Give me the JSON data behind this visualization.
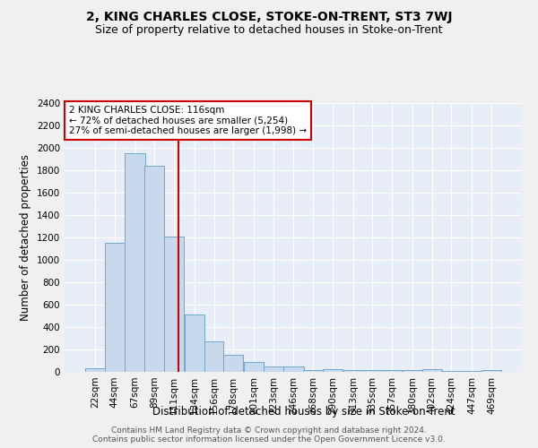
{
  "title": "2, KING CHARLES CLOSE, STOKE-ON-TRENT, ST3 7WJ",
  "subtitle": "Size of property relative to detached houses in Stoke-on-Trent",
  "xlabel": "Distribution of detached houses by size in Stoke-on-Trent",
  "ylabel": "Number of detached properties",
  "footer_line1": "Contains HM Land Registry data © Crown copyright and database right 2024.",
  "footer_line2": "Contains public sector information licensed under the Open Government Licence v3.0.",
  "bar_labels": [
    "22sqm",
    "44sqm",
    "67sqm",
    "89sqm",
    "111sqm",
    "134sqm",
    "156sqm",
    "178sqm",
    "201sqm",
    "223sqm",
    "246sqm",
    "268sqm",
    "290sqm",
    "313sqm",
    "335sqm",
    "357sqm",
    "380sqm",
    "402sqm",
    "424sqm",
    "447sqm",
    "469sqm"
  ],
  "bar_values": [
    30,
    1150,
    1950,
    1840,
    1210,
    510,
    270,
    155,
    90,
    45,
    45,
    20,
    25,
    20,
    20,
    20,
    20,
    25,
    5,
    5,
    20
  ],
  "bar_color": "#c9d9ed",
  "bar_edgecolor": "#6fa8d0",
  "property_size": 116,
  "property_label": "2 KING CHARLES CLOSE: 116sqm",
  "annotation_line1": "← 72% of detached houses are smaller (5,254)",
  "annotation_line2": "27% of semi-detached houses are larger (1,998) →",
  "vline_color": "#cc0000",
  "vline_x": 116,
  "annotation_box_color": "#ffffff",
  "annotation_box_edgecolor": "#cc0000",
  "ylim": [
    0,
    2400
  ],
  "yticks": [
    0,
    200,
    400,
    600,
    800,
    1000,
    1200,
    1400,
    1600,
    1800,
    2000,
    2200,
    2400
  ],
  "bg_color": "#e8eef7",
  "grid_color": "#ffffff",
  "fig_bg_color": "#f0f0f0",
  "title_fontsize": 10,
  "subtitle_fontsize": 9,
  "axis_label_fontsize": 8.5,
  "tick_fontsize": 7.5,
  "annotation_fontsize": 7.5,
  "footer_fontsize": 6.5
}
